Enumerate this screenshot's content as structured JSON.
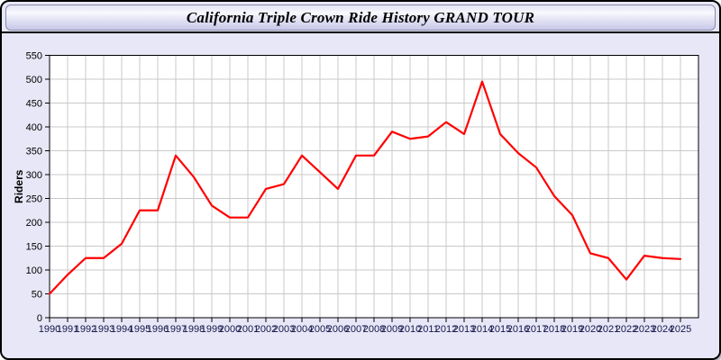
{
  "window": {
    "title": "California Triple Crown Ride History GRAND TOUR"
  },
  "colors": {
    "page_bg": "#e7e7f7",
    "plot_bg": "#ffffff",
    "grid": "#c9c9c9",
    "axis": "#000000",
    "x_label": "#15154a",
    "line": "#ff0000"
  },
  "chart_data": {
    "type": "line",
    "title": "California Triple Crown Ride History GRAND TOUR",
    "xlabel": "",
    "ylabel": "Riders",
    "x": [
      1990,
      1991,
      1992,
      1993,
      1994,
      1995,
      1996,
      1997,
      1998,
      1999,
      2000,
      2001,
      2002,
      2003,
      2004,
      2005,
      2006,
      2007,
      2008,
      2009,
      2010,
      2011,
      2012,
      2013,
      2014,
      2015,
      2016,
      2017,
      2018,
      2019,
      2020,
      2021,
      2022,
      2023,
      2024,
      2025
    ],
    "series": [
      {
        "name": "Riders",
        "color": "#ff0000",
        "values": [
          50,
          90,
          125,
          125,
          155,
          225,
          225,
          340,
          295,
          235,
          210,
          210,
          270,
          280,
          340,
          305,
          270,
          340,
          340,
          390,
          375,
          380,
          410,
          385,
          495,
          385,
          345,
          315,
          255,
          215,
          135,
          125,
          80,
          130,
          125,
          123
        ]
      }
    ],
    "ylim": [
      0,
      550
    ],
    "ytick_interval": 50,
    "grid": true,
    "legend": "none"
  }
}
